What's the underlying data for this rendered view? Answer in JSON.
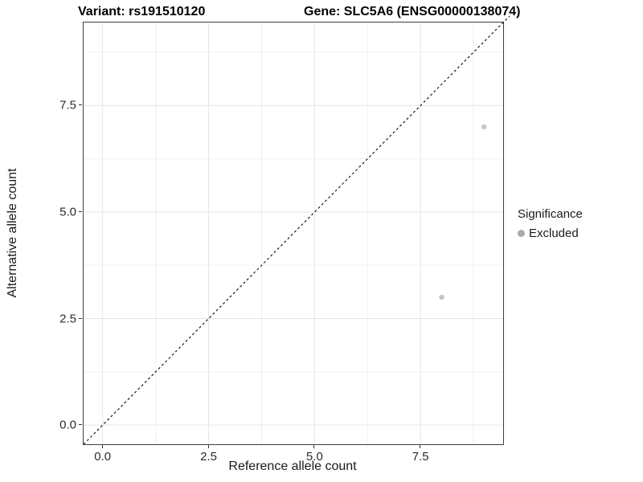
{
  "titles": {
    "variant": "Variant: rs191510120",
    "gene": "Gene: SLC5A6 (ENSG00000138074)"
  },
  "chart_data": {
    "type": "scatter",
    "title": "Variant: rs191510120 | Gene: SLC5A6 (ENSG00000138074)",
    "xlabel": "Reference allele count",
    "ylabel": "Alternative allele count",
    "xlim": [
      -0.45,
      9.45
    ],
    "ylim": [
      -0.45,
      9.45
    ],
    "x_breaks": [
      0,
      2.5,
      5,
      7.5
    ],
    "y_breaks": [
      0,
      2.5,
      5,
      7.5
    ],
    "x_tick_labels": [
      "0.0",
      "2.5",
      "5.0",
      "7.5"
    ],
    "y_tick_labels": [
      "0.0",
      "2.5",
      "5.0",
      "7.5"
    ],
    "minor_step": 1.25,
    "grid": true,
    "points": [
      {
        "x": 9,
        "y": 7,
        "series": "Excluded"
      },
      {
        "x": 8,
        "y": 3,
        "series": "Excluded"
      }
    ],
    "abline": {
      "slope": 1,
      "intercept": 0,
      "style": "dashed"
    },
    "legend": {
      "title": "Significance",
      "position": "right",
      "items": [
        {
          "label": "Excluded",
          "color": "#ababab"
        }
      ]
    },
    "colors": {
      "point": "#c5c5c5",
      "abline": "#1a1a1a",
      "grid_major": "#e5e5e5",
      "grid_minor": "#f0f0f0",
      "panel_border": "#3f3f3f",
      "tick": "#333333"
    }
  }
}
